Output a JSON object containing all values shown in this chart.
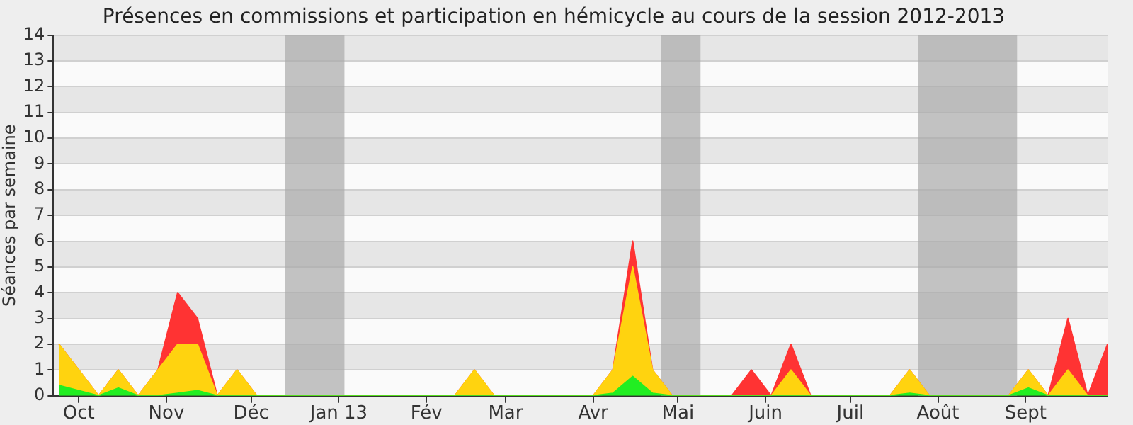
{
  "chart_data": {
    "type": "area",
    "title": "Présences en commissions et participation en hémicycle au cours de la session 2012-2013",
    "ylabel": "Séances par semaine",
    "stacked": true,
    "legend": false,
    "grid": "y",
    "marker": "none",
    "x": [
      "2012-09-24",
      "2012-10-01",
      "2012-10-08",
      "2012-10-15",
      "2012-10-22",
      "2012-10-29",
      "2012-11-05",
      "2012-11-12",
      "2012-11-19",
      "2012-11-26",
      "2012-12-03",
      "2012-12-10",
      "2012-12-17",
      "2012-12-24",
      "2012-12-31",
      "2013-01-07",
      "2013-01-14",
      "2013-01-21",
      "2013-01-28",
      "2013-02-04",
      "2013-02-11",
      "2013-02-18",
      "2013-02-25",
      "2013-03-04",
      "2013-03-11",
      "2013-03-18",
      "2013-03-25",
      "2013-04-01",
      "2013-04-08",
      "2013-04-15",
      "2013-04-22",
      "2013-04-29",
      "2013-05-06",
      "2013-05-13",
      "2013-05-20",
      "2013-05-27",
      "2013-06-03",
      "2013-06-10",
      "2013-06-17",
      "2013-06-24",
      "2013-07-01",
      "2013-07-08",
      "2013-07-15",
      "2013-07-22",
      "2013-07-29",
      "2013-08-05",
      "2013-08-12",
      "2013-08-19",
      "2013-08-26",
      "2013-09-02",
      "2013-09-09",
      "2013-09-16",
      "2013-09-23",
      "2013-09-30"
    ],
    "series": [
      {
        "color": "#22ee22",
        "values": [
          0.4,
          0.2,
          0,
          0.3,
          0,
          0,
          0.1,
          0.2,
          0,
          0,
          0,
          0,
          0,
          0,
          0,
          0,
          0,
          0,
          0,
          0,
          0,
          0,
          0,
          0,
          0,
          0,
          0,
          0,
          0.1,
          0.75,
          0.1,
          0,
          0,
          0,
          0,
          0,
          0,
          0,
          0,
          0,
          0,
          0,
          0,
          0.1,
          0,
          0,
          0,
          0,
          0,
          0.3,
          0,
          0,
          0,
          0
        ]
      },
      {
        "color": "#ffd30f",
        "values": [
          1.6,
          0.8,
          0,
          0.7,
          0,
          1,
          1.9,
          1.8,
          0,
          1,
          0,
          0,
          0,
          0,
          0,
          0,
          0,
          0,
          0,
          0,
          0,
          1,
          0,
          0,
          0,
          0,
          0,
          0,
          0.9,
          4.25,
          0.9,
          0,
          0,
          0,
          0,
          0,
          0,
          1,
          0,
          0,
          0,
          0,
          0,
          0.9,
          0,
          0,
          0,
          0,
          0,
          0.7,
          0,
          1,
          0,
          0
        ]
      },
      {
        "color": "#ff3333",
        "values": [
          0,
          0,
          0,
          0,
          0,
          0,
          2,
          1,
          0,
          0,
          0,
          0,
          0,
          0,
          0,
          0,
          0,
          0,
          0,
          0,
          0,
          0,
          0,
          0,
          0,
          0,
          0,
          0,
          0,
          1,
          0,
          0,
          0,
          0,
          0,
          1,
          0,
          1,
          0,
          0,
          0,
          0,
          0,
          0,
          0,
          0,
          0,
          0,
          0,
          0,
          0,
          2,
          0,
          2
        ]
      }
    ],
    "xlim": [
      "2012-09-22",
      "2013-09-30"
    ],
    "xticks": [
      {
        "value": "2012-10-01",
        "label": "Oct"
      },
      {
        "value": "2012-11-01",
        "label": "Nov"
      },
      {
        "value": "2012-12-01",
        "label": "Déc"
      },
      {
        "value": "2013-01-01",
        "label": "Jan 13"
      },
      {
        "value": "2013-02-01",
        "label": "Fév"
      },
      {
        "value": "2013-03-01",
        "label": "Mar"
      },
      {
        "value": "2013-04-01",
        "label": "Avr"
      },
      {
        "value": "2013-05-01",
        "label": "Mai"
      },
      {
        "value": "2013-06-01",
        "label": "Juin"
      },
      {
        "value": "2013-07-01",
        "label": "Juil"
      },
      {
        "value": "2013-08-01",
        "label": "Août"
      },
      {
        "value": "2013-09-01",
        "label": "Sept"
      }
    ],
    "ylim": [
      0,
      14
    ],
    "yticks": [
      0,
      1,
      2,
      3,
      4,
      5,
      6,
      7,
      8,
      9,
      10,
      11,
      12,
      13,
      14
    ],
    "bands": [
      {
        "axis": "x",
        "from": "2012-12-13",
        "to": "2013-01-03",
        "color": "#aaaaaa"
      },
      {
        "axis": "x",
        "from": "2013-04-25",
        "to": "2013-05-09",
        "color": "#aaaaaa"
      },
      {
        "axis": "x",
        "from": "2013-07-25",
        "to": "2013-08-29",
        "color": "#aaaaaa"
      }
    ]
  }
}
